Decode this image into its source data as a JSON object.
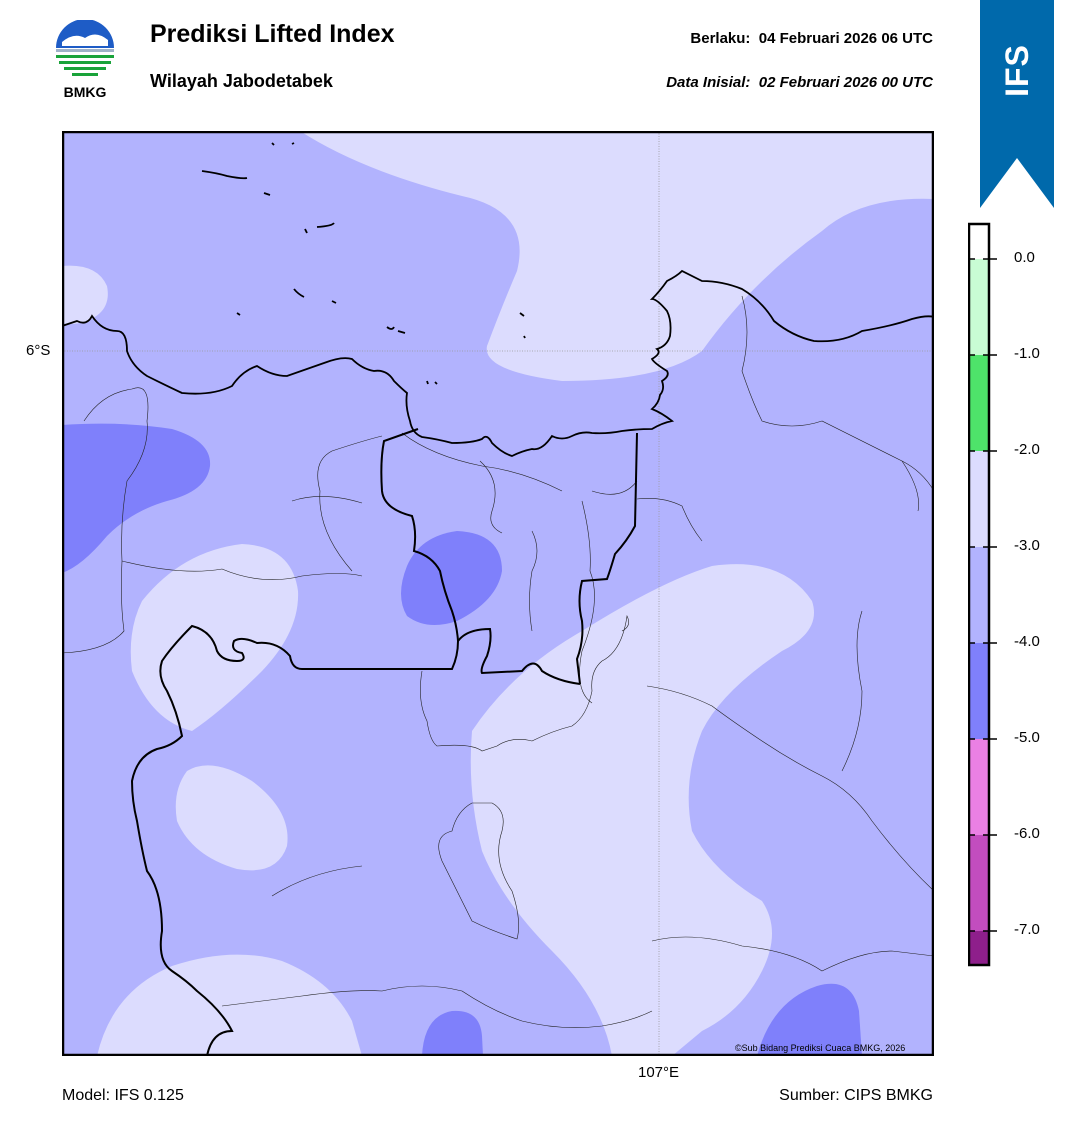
{
  "header": {
    "logo_text": "BMKG",
    "title": "Prediksi Lifted Index",
    "subtitle": "Wilayah Jabodetabek",
    "valid_label": "Berlaku:  04 Februari 2026 06 UTC",
    "init_label": "Data Inisial:  02 Februari 2026 00 UTC",
    "ribbon_text": "IFS",
    "ribbon_color": "#0069ab"
  },
  "map": {
    "lat_label": "6°S",
    "lon_label": "107°E",
    "copyright": "©Sub Bidang Prediksi Cuaca BMKG, 2026",
    "fill_colors": {
      "range_-3_-2": "#dcdcfe",
      "range_-4_-3": "#b2b3fe",
      "range_-5_-4": "#7f80fb"
    },
    "coastline_color": "#000000"
  },
  "colorbar": {
    "ticks": [
      "0.0",
      "-1.0",
      "-2.0",
      "-3.0",
      "-4.0",
      "-5.0",
      "-6.0",
      "-7.0"
    ],
    "bands": [
      {
        "color": "#ffffff"
      },
      {
        "color": "#c8fcd4"
      },
      {
        "color": "#4ee36a"
      },
      {
        "color": "#dcdcfe"
      },
      {
        "color": "#b2b3fe"
      },
      {
        "color": "#7f80fb"
      },
      {
        "color": "#ea80e4"
      },
      {
        "color": "#c24dbf"
      },
      {
        "color": "#8e1f8b"
      }
    ]
  },
  "footer": {
    "model": "Model: IFS 0.125",
    "source": "Sumber: CIPS BMKG"
  }
}
